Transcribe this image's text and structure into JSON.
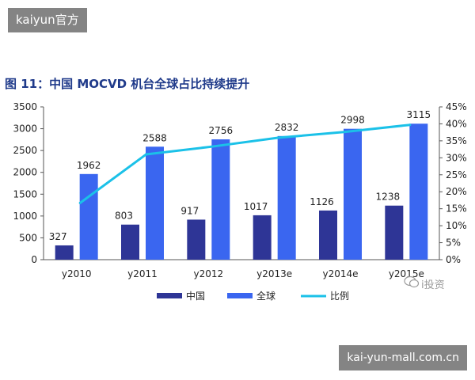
{
  "badges": {
    "top": "kaiyun官方",
    "bottom": "kai-yun-mall.com.cn"
  },
  "title": "图 11：中国 MOCVD 机台全球占比持续提升",
  "watermark": {
    "icon": "wechat-icon",
    "text": "i投资"
  },
  "chart_data": {
    "type": "bar",
    "categories": [
      "y2010",
      "y2011",
      "y2012",
      "y2013e",
      "y2014e",
      "y2015e"
    ],
    "series": [
      {
        "name": "中国",
        "type": "bar",
        "values": [
          327,
          803,
          917,
          1017,
          1126,
          1238
        ],
        "color": "#2e3596"
      },
      {
        "name": "全球",
        "type": "bar",
        "values": [
          1962,
          2588,
          2756,
          2832,
          2998,
          3115
        ],
        "color": "#3a66f0"
      },
      {
        "name": "比例",
        "type": "line",
        "axis": "right",
        "values": [
          16.7,
          31.0,
          33.3,
          35.9,
          37.6,
          39.7
        ],
        "color": "#1bc1e8"
      }
    ],
    "y_left": {
      "ylim": [
        0,
        3500
      ],
      "ticks": [
        "0",
        "500",
        "1000",
        "1500",
        "2000",
        "2500",
        "3000",
        "3500"
      ]
    },
    "y_right": {
      "ylim": [
        0,
        45
      ],
      "ticks": [
        "0%",
        "5%",
        "10%",
        "15%",
        "20%",
        "25%",
        "30%",
        "35%",
        "40%",
        "45%"
      ]
    },
    "legend_position": "bottom",
    "grid": false
  }
}
